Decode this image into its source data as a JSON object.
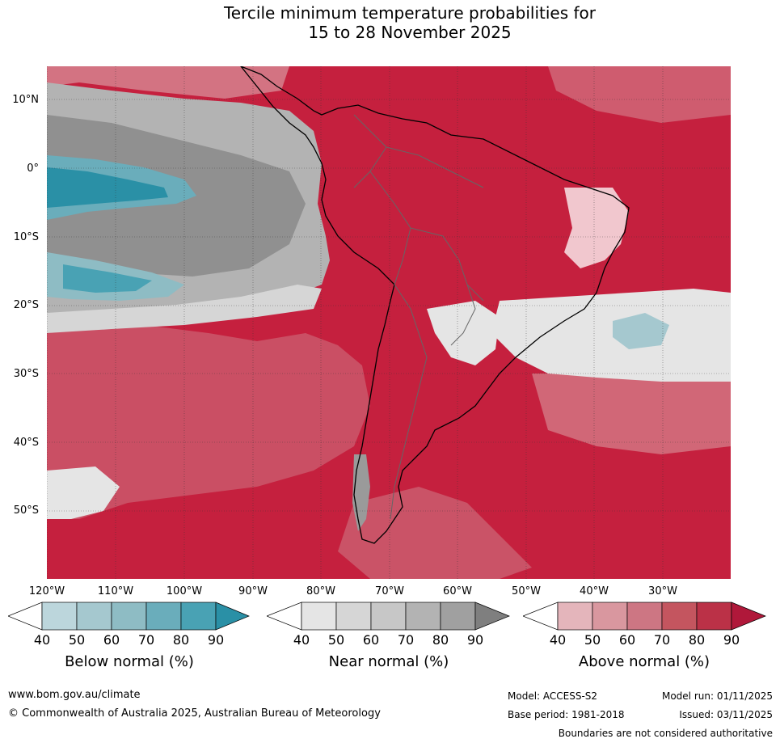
{
  "title": {
    "line1": "Tercile minimum temperature probabilities for",
    "line2": "15 to 28 November 2025"
  },
  "axes": {
    "lat_labels": [
      "10°N",
      "0°",
      "10°S",
      "20°S",
      "30°S",
      "40°S",
      "50°S"
    ],
    "lon_labels": [
      "120°W",
      "110°W",
      "100°W",
      "90°W",
      "80°W",
      "70°W",
      "60°W",
      "50°W",
      "40°W",
      "30°W"
    ]
  },
  "legend": {
    "ticks": [
      "40",
      "50",
      "60",
      "70",
      "80",
      "90"
    ],
    "below": {
      "title": "Below normal (%)",
      "colors": [
        "#ffffff",
        "#bcd6dc",
        "#a5c8cf",
        "#8ebcc4",
        "#6aadbb",
        "#49a2b4",
        "#2a90a6"
      ]
    },
    "near": {
      "title": "Near normal (%)",
      "colors": [
        "#ffffff",
        "#e5e5e5",
        "#d6d6d6",
        "#c7c7c7",
        "#b3b3b3",
        "#a0a0a0",
        "#7f7f7f"
      ]
    },
    "above": {
      "title": "Above normal (%)",
      "colors": [
        "#ffffff",
        "#e4b5bb",
        "#d9979f",
        "#cd7683",
        "#c4555f",
        "#bb3147",
        "#b0183a"
      ]
    }
  },
  "footer": {
    "url": "www.bom.gov.au/climate",
    "copyright": "© Commonwealth of Australia 2025, Australian Bureau of Meteorology",
    "model": "Model: ACCESS-S2",
    "model_run": "Model run: 01/11/2025",
    "base_period": "Base period: 1981-2018",
    "issued": "Issued: 03/11/2025",
    "disclaimer": "Boundaries are not considered authoritative"
  }
}
